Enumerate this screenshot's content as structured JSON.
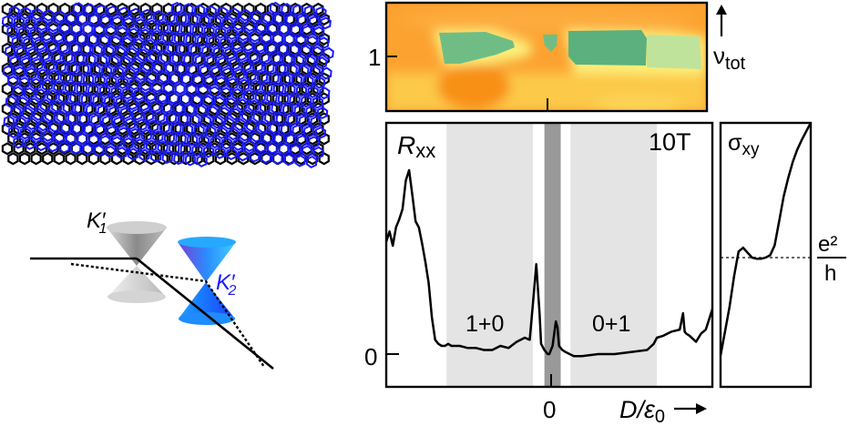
{
  "colors": {
    "layer1": "#000000",
    "layer2": "#1a1aff",
    "band_light": "#e4e4e4",
    "band_dark": "#999999"
  },
  "lattice": {
    "label": "twisted bilayer lattice"
  },
  "cones": {
    "k1_label": "K",
    "k1_sub": "1",
    "k2_label": "K",
    "k2_sub": "2",
    "prime": "′"
  },
  "colormap": {
    "ytick": "1",
    "ylabel_main": "ν",
    "ylabel_sub": "tot"
  },
  "chart_data": [
    {
      "type": "line",
      "title": "",
      "panel_label_main": "R",
      "panel_label_sub": "xx",
      "field_label": "10T",
      "xlabel_main": "D/ε",
      "xlabel_sub": "0",
      "xticks": [
        "0"
      ],
      "yticks": [
        "0"
      ],
      "xlim": [
        -1.0,
        1.0
      ],
      "ylim": [
        -0.25,
        1.0
      ],
      "bands": [
        {
          "label": "1+0",
          "from": -0.63,
          "to": -0.1,
          "shade": "light"
        },
        {
          "label": "",
          "from": -0.03,
          "to": 0.07,
          "shade": "dark"
        },
        {
          "label": "0+1",
          "from": 0.13,
          "to": 0.66,
          "shade": "light"
        }
      ],
      "series": [
        {
          "name": "Rxx",
          "x": [
            -1.0,
            -0.98,
            -0.96,
            -0.94,
            -0.92,
            -0.9,
            -0.88,
            -0.86,
            -0.84,
            -0.82,
            -0.8,
            -0.78,
            -0.76,
            -0.74,
            -0.72,
            -0.7,
            -0.68,
            -0.66,
            -0.64,
            -0.62,
            -0.6,
            -0.55,
            -0.5,
            -0.45,
            -0.4,
            -0.35,
            -0.3,
            -0.25,
            -0.2,
            -0.15,
            -0.12,
            -0.1,
            -0.08,
            -0.06,
            -0.05,
            -0.03,
            -0.01,
            0.0,
            0.02,
            0.04,
            0.05,
            0.06,
            0.08,
            0.1,
            0.15,
            0.2,
            0.3,
            0.4,
            0.5,
            0.6,
            0.64,
            0.66,
            0.7,
            0.75,
            0.8,
            0.82,
            0.83,
            0.84,
            0.86,
            0.9,
            0.93,
            0.96,
            1.0
          ],
          "y": [
            0.55,
            0.6,
            0.53,
            0.62,
            0.66,
            0.71,
            0.85,
            0.9,
            0.78,
            0.65,
            0.62,
            0.54,
            0.45,
            0.35,
            0.18,
            0.07,
            0.05,
            0.04,
            0.04,
            0.05,
            0.04,
            0.04,
            0.03,
            0.03,
            0.02,
            0.02,
            0.04,
            0.03,
            0.06,
            0.08,
            0.07,
            0.25,
            0.44,
            0.2,
            0.05,
            0.02,
            0.0,
            0.0,
            0.04,
            0.16,
            0.13,
            0.04,
            0.02,
            0.01,
            -0.01,
            -0.01,
            0.0,
            0.0,
            0.01,
            0.02,
            0.05,
            0.08,
            0.09,
            0.11,
            0.12,
            0.2,
            0.11,
            0.1,
            0.09,
            0.06,
            0.1,
            0.12,
            0.22
          ]
        }
      ]
    },
    {
      "type": "line",
      "panel_label_main": "σ",
      "panel_label_sub": "xy",
      "reference_label_num": "e²",
      "reference_label_den": "h",
      "reference_value": 1.0,
      "ylim": [
        0.0,
        2.1
      ],
      "series": [
        {
          "name": "σxy",
          "x": [
            0,
            0.05,
            0.1,
            0.15,
            0.2,
            0.25,
            0.3,
            0.35,
            0.4,
            0.45,
            0.5,
            0.55,
            0.6,
            0.65,
            0.7,
            0.75,
            0.8,
            0.85,
            0.9,
            0.95,
            1.0
          ],
          "y": [
            0.2,
            0.4,
            0.6,
            0.85,
            1.05,
            1.08,
            1.04,
            1.0,
            0.99,
            0.99,
            1.0,
            1.02,
            1.1,
            1.3,
            1.5,
            1.65,
            1.78,
            1.88,
            1.96,
            2.03,
            2.1
          ]
        }
      ]
    }
  ]
}
